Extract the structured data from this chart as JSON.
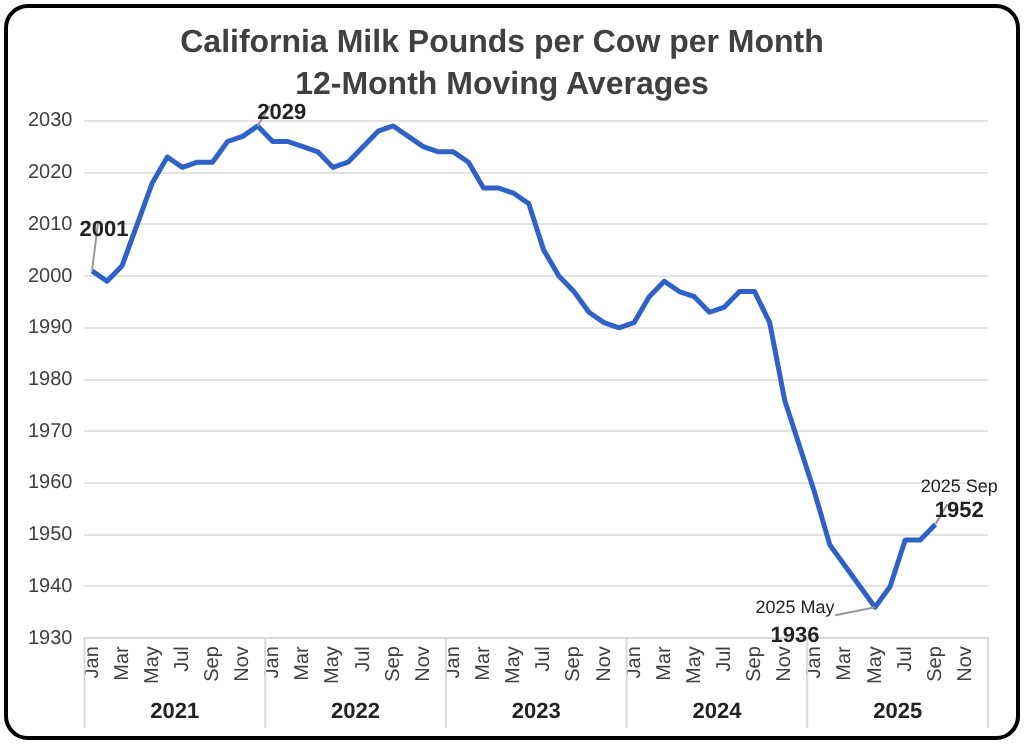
{
  "chart_data": {
    "type": "line",
    "title": "California Milk Pounds per Cow per Month",
    "subtitle": "12-Month Moving Averages",
    "categories": [
      "Jan",
      null,
      "Mar",
      null,
      "May",
      null,
      "Jul",
      null,
      "Sep",
      null,
      "Nov",
      null,
      "Jan",
      null,
      "Mar",
      null,
      "May",
      null,
      "Jul",
      null,
      "Sep",
      null,
      "Nov",
      null,
      "Jan",
      null,
      "Mar",
      null,
      "May",
      null,
      "Jul",
      null,
      "Sep",
      null,
      "Nov",
      null,
      "Jan",
      null,
      "Mar",
      null,
      "May",
      null,
      "Jul",
      null,
      "Sep",
      null,
      "Nov",
      null,
      "Jan",
      null,
      "Mar",
      null,
      "May",
      null,
      "Jul",
      null,
      "Sep",
      null,
      "Nov",
      null
    ],
    "series": [
      {
        "color": "#2e62c8",
        "values": [
          2001,
          1999,
          2002,
          2010,
          2018,
          2023,
          2021,
          2022,
          2022,
          2026,
          2027,
          2029,
          2026,
          2026,
          2025,
          2024,
          2021,
          2022,
          2025,
          2028,
          2029,
          2027,
          2025,
          2024,
          2024,
          2022,
          2017,
          2017,
          2016,
          2014,
          2005,
          2000,
          1997,
          1993,
          1991,
          1990,
          1991,
          1996,
          1999,
          1997,
          1996,
          1993,
          1994,
          1997,
          1997,
          1991,
          1976,
          1967,
          1958,
          1948,
          1944,
          1940,
          1936,
          1940,
          1949,
          1949,
          1952,
          null,
          null,
          null
        ],
        "value_labels": [
          "2001",
          null,
          null,
          null,
          null,
          null,
          null,
          null,
          null,
          null,
          null,
          "2029",
          null,
          null,
          null,
          null,
          null,
          null,
          null,
          null,
          null,
          null,
          null,
          null,
          null,
          null,
          null,
          null,
          null,
          null,
          null,
          null,
          null,
          null,
          null,
          null,
          null,
          null,
          null,
          null,
          null,
          null,
          null,
          null,
          null,
          null,
          null,
          null,
          null,
          null,
          null,
          null,
          "2025 May\n1936",
          null,
          null,
          null,
          "2025 Sep\n1952",
          null,
          null,
          null
        ]
      }
    ],
    "annotations": [
      "2021",
      "2022",
      "2023",
      "2024",
      "2025"
    ],
    "ylim": [
      1930,
      2030
    ],
    "yticks": [
      1930,
      1940,
      1950,
      1960,
      1970,
      1980,
      1990,
      2000,
      2010,
      2020,
      2030
    ],
    "grid": "y",
    "legend": false,
    "marker": "none",
    "line_style": "solid"
  }
}
